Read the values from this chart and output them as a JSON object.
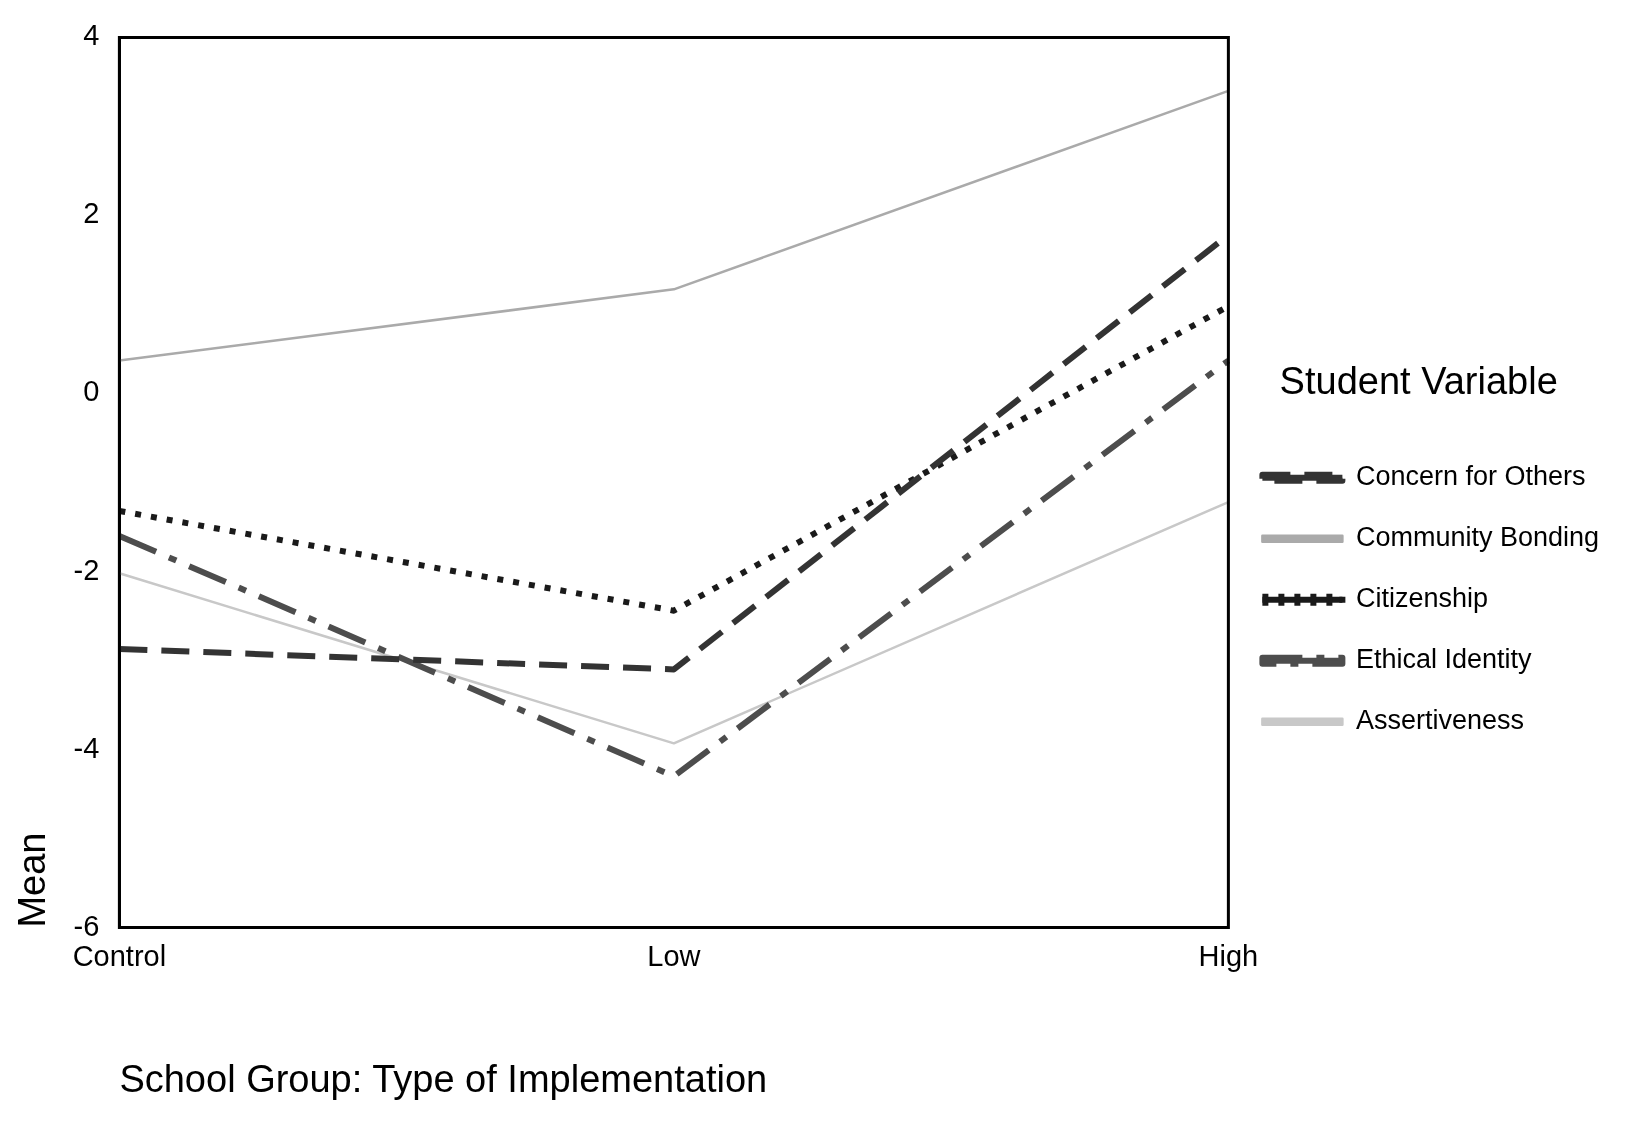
{
  "chart_data": {
    "type": "line",
    "xlabel": "School Group: Type of Implementation",
    "ylabel": "Mean",
    "legend_title": "Student Variable",
    "categories": [
      "Control",
      "Low",
      "High"
    ],
    "series": [
      {
        "name": "Concern for Others",
        "color": "#333333",
        "line_style": "dashed",
        "values": [
          -2.87,
          -3.1,
          1.78
        ]
      },
      {
        "name": "Community Bonding",
        "color": "#aaaaaa",
        "line_style": "solid",
        "values": [
          0.37,
          1.17,
          3.4
        ]
      },
      {
        "name": "Citizenship",
        "color": "#1a1a1a",
        "line_style": "dotted",
        "values": [
          -1.32,
          -2.44,
          0.98
        ]
      },
      {
        "name": "Ethical Identity",
        "color": "#4d4d4d",
        "line_style": "dashdot",
        "values": [
          -1.6,
          -4.3,
          0.37
        ]
      },
      {
        "name": "Assertiveness",
        "color": "#c8c8c8",
        "line_style": "solid",
        "values": [
          -2.02,
          -3.93,
          -1.22
        ]
      }
    ],
    "ylim": [
      -6,
      4
    ],
    "yticks": [
      -6,
      -4,
      -2,
      0,
      2,
      4
    ],
    "grid": false,
    "legend": "right",
    "marker": "none"
  }
}
